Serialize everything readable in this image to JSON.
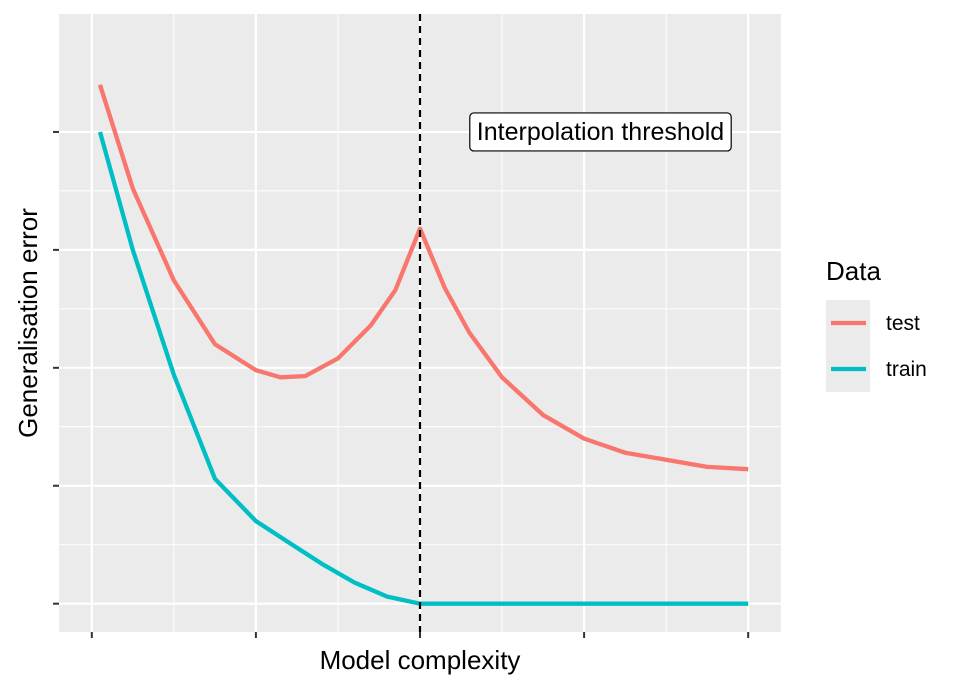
{
  "chart_data": {
    "type": "line",
    "title": "",
    "xlabel": "Model complexity",
    "ylabel": "Generalisation error",
    "xlim": [
      -0.2,
      4.2
    ],
    "ylim": [
      -0.12,
      2.5
    ],
    "x_ticks": [
      0,
      1,
      2,
      3,
      4
    ],
    "y_ticks": [
      0,
      0.5,
      1,
      1.5,
      2
    ],
    "tick_labels_shown": false,
    "grid": true,
    "interpolation_threshold_x": 2,
    "annotation": {
      "text": "Interpolation threshold",
      "x": 3.1,
      "y": 2.0
    },
    "legend": {
      "title": "Data",
      "position": "right"
    },
    "series": [
      {
        "name": "test",
        "color": "#F8766D",
        "x": [
          0.05,
          0.25,
          0.5,
          0.75,
          1.0,
          1.15,
          1.3,
          1.5,
          1.7,
          1.85,
          2.0,
          2.15,
          2.3,
          2.5,
          2.75,
          3.0,
          3.25,
          3.5,
          3.75,
          4.0
        ],
        "y": [
          2.2,
          1.76,
          1.37,
          1.1,
          0.99,
          0.96,
          0.965,
          1.04,
          1.18,
          1.33,
          1.59,
          1.34,
          1.15,
          0.96,
          0.8,
          0.7,
          0.64,
          0.61,
          0.58,
          0.57
        ]
      },
      {
        "name": "train",
        "color": "#00BFC4",
        "x": [
          0.05,
          0.25,
          0.5,
          0.75,
          1.0,
          1.2,
          1.4,
          1.6,
          1.8,
          2.0,
          2.5,
          3.0,
          3.5,
          4.0
        ],
        "y": [
          2.0,
          1.5,
          0.97,
          0.53,
          0.35,
          0.26,
          0.17,
          0.09,
          0.03,
          0.0,
          0.0,
          0.0,
          0.0,
          0.0
        ]
      }
    ]
  }
}
